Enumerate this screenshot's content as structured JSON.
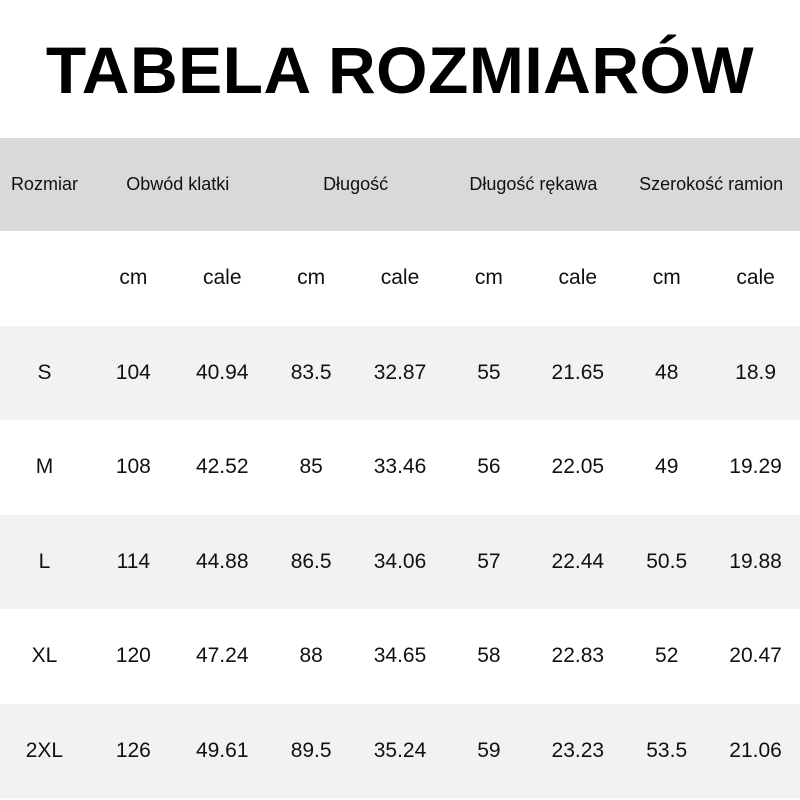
{
  "title": "TABELA ROZMIARÓW",
  "headers": [
    "Rozmiar",
    "Obwód klatki",
    "Długość",
    "Długość rękawa",
    "Szerokość ramion"
  ],
  "units": [
    "cm",
    "cale",
    "cm",
    "cale",
    "cm",
    "cale",
    "cm",
    "cale"
  ],
  "rows": [
    [
      "S",
      "104",
      "40.94",
      "83.5",
      "32.87",
      "55",
      "21.65",
      "48",
      "18.9"
    ],
    [
      "M",
      "108",
      "42.52",
      "85",
      "33.46",
      "56",
      "22.05",
      "49",
      "19.29"
    ],
    [
      "L",
      "114",
      "44.88",
      "86.5",
      "34.06",
      "57",
      "22.44",
      "50.5",
      "19.88"
    ],
    [
      "XL",
      "120",
      "47.24",
      "88",
      "34.65",
      "58",
      "22.83",
      "52",
      "20.47"
    ],
    [
      "2XL",
      "126",
      "49.61",
      "89.5",
      "35.24",
      "59",
      "23.23",
      "53.5",
      "21.06"
    ]
  ],
  "colors": {
    "header_bg": "#d9d9d9",
    "row_shade": "#f2f2f2"
  }
}
